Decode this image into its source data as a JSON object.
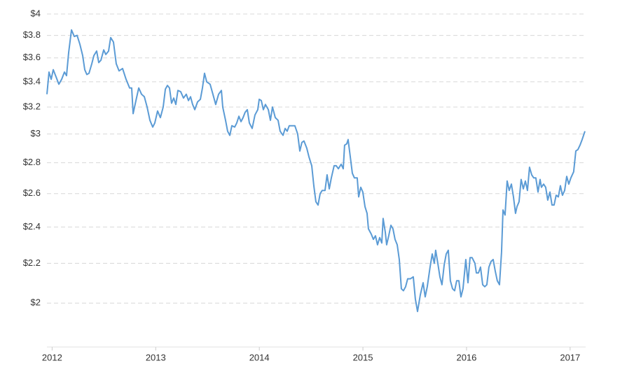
{
  "chart_data": {
    "type": "line",
    "log_scale_y": true,
    "grid": true,
    "xlim": [
      2011.95,
      2017.15
    ],
    "xticks": [
      2012,
      2013,
      2014,
      2015,
      2016,
      2017
    ],
    "ylim": [
      1.8,
      4
    ],
    "yticks": [
      {
        "value": 2,
        "label": "$2"
      },
      {
        "value": 2.2,
        "label": "$2.2"
      },
      {
        "value": 2.4,
        "label": "$2.4"
      },
      {
        "value": 2.6,
        "label": "$2.6"
      },
      {
        "value": 2.8,
        "label": "$2.8"
      },
      {
        "value": 3,
        "label": "$3"
      },
      {
        "value": 3.2,
        "label": "$3.2"
      },
      {
        "value": 3.4,
        "label": "$3.4"
      },
      {
        "value": 3.6,
        "label": "$3.6"
      },
      {
        "value": 3.8,
        "label": "$3.8"
      },
      {
        "value": 4,
        "label": "$4"
      }
    ],
    "color": "#5b9bd5",
    "x": [
      2011.95,
      2011.97,
      2011.991,
      2012.011,
      2012.038,
      2012.065,
      2012.092,
      2012.119,
      2012.139,
      2012.16,
      2012.187,
      2012.214,
      2012.241,
      2012.268,
      2012.295,
      2012.315,
      2012.335,
      2012.356,
      2012.383,
      2012.403,
      2012.43,
      2012.45,
      2012.471,
      2012.498,
      2012.518,
      2012.545,
      2012.565,
      2012.592,
      2012.619,
      2012.646,
      2012.68,
      2012.714,
      2012.748,
      2012.768,
      2012.782,
      2012.809,
      2012.836,
      2012.863,
      2012.89,
      2012.917,
      2012.944,
      2012.971,
      2012.991,
      2013.018,
      2013.045,
      2013.072,
      2013.093,
      2013.113,
      2013.133,
      2013.153,
      2013.174,
      2013.194,
      2013.214,
      2013.241,
      2013.268,
      2013.295,
      2013.316,
      2013.336,
      2013.356,
      2013.377,
      2013.404,
      2013.431,
      2013.451,
      2013.471,
      2013.492,
      2013.525,
      2013.552,
      2013.579,
      2013.607,
      2013.634,
      2013.647,
      2013.674,
      2013.694,
      2013.715,
      2013.735,
      2013.762,
      2013.782,
      2013.803,
      2013.823,
      2013.843,
      2013.863,
      2013.884,
      2013.904,
      2013.931,
      2013.958,
      2013.985,
      2013.999,
      2014.019,
      2014.039,
      2014.059,
      2014.087,
      2014.107,
      2014.127,
      2014.154,
      2014.181,
      2014.201,
      2014.229,
      2014.249,
      2014.269,
      2014.289,
      2014.316,
      2014.343,
      2014.37,
      2014.391,
      2014.411,
      2014.431,
      2014.458,
      2014.479,
      2014.506,
      2014.526,
      2014.546,
      2014.567,
      2014.587,
      2014.607,
      2014.634,
      2014.654,
      2014.675,
      2014.695,
      2014.722,
      2014.742,
      2014.763,
      2014.79,
      2014.81,
      2014.823,
      2014.844,
      2014.857,
      2014.878,
      2014.898,
      2014.918,
      2014.945,
      2014.959,
      2014.979,
      2014.999,
      2015.02,
      2015.04,
      2015.053,
      2015.08,
      2015.101,
      2015.121,
      2015.141,
      2015.162,
      2015.182,
      2015.195,
      2015.216,
      2015.229,
      2015.249,
      2015.27,
      2015.29,
      2015.31,
      2015.331,
      2015.351,
      2015.371,
      2015.391,
      2015.412,
      2015.432,
      2015.459,
      2015.486,
      2015.506,
      2015.527,
      2015.554,
      2015.581,
      2015.601,
      2015.621,
      2015.648,
      2015.669,
      2015.689,
      2015.702,
      2015.723,
      2015.743,
      2015.763,
      2015.784,
      2015.804,
      2015.824,
      2015.844,
      2015.865,
      2015.885,
      2015.905,
      2015.926,
      2015.946,
      2015.966,
      2015.993,
      2016.014,
      2016.034,
      2016.054,
      2016.081,
      2016.095,
      2016.115,
      2016.135,
      2016.156,
      2016.176,
      2016.196,
      2016.216,
      2016.237,
      2016.257,
      2016.277,
      2016.297,
      2016.318,
      2016.338,
      2016.352,
      2016.372,
      2016.392,
      2016.412,
      2016.433,
      2016.453,
      2016.473,
      2016.487,
      2016.507,
      2016.527,
      2016.548,
      2016.568,
      2016.588,
      2016.608,
      2016.629,
      2016.649,
      2016.669,
      2016.69,
      2016.71,
      2016.723,
      2016.744,
      2016.764,
      2016.784,
      2016.805,
      2016.825,
      2016.845,
      2016.865,
      2016.886,
      2016.906,
      2016.926,
      2016.947,
      2016.967,
      2016.987,
      2017.007,
      2017.034,
      2017.055,
      2017.075,
      2017.095,
      2017.116,
      2017.143
    ],
    "values": [
      3.3,
      3.48,
      3.42,
      3.5,
      3.44,
      3.38,
      3.42,
      3.48,
      3.45,
      3.65,
      3.85,
      3.79,
      3.8,
      3.72,
      3.62,
      3.5,
      3.46,
      3.47,
      3.55,
      3.62,
      3.66,
      3.56,
      3.58,
      3.67,
      3.63,
      3.66,
      3.78,
      3.74,
      3.55,
      3.49,
      3.51,
      3.42,
      3.35,
      3.35,
      3.15,
      3.25,
      3.35,
      3.3,
      3.28,
      3.2,
      3.1,
      3.05,
      3.08,
      3.17,
      3.12,
      3.2,
      3.34,
      3.37,
      3.35,
      3.23,
      3.27,
      3.22,
      3.33,
      3.32,
      3.27,
      3.3,
      3.25,
      3.28,
      3.22,
      3.18,
      3.24,
      3.26,
      3.35,
      3.47,
      3.4,
      3.38,
      3.3,
      3.22,
      3.3,
      3.33,
      3.2,
      3.1,
      3.02,
      2.99,
      3.06,
      3.05,
      3.08,
      3.13,
      3.09,
      3.12,
      3.16,
      3.18,
      3.08,
      3.04,
      3.14,
      3.18,
      3.26,
      3.25,
      3.18,
      3.22,
      3.18,
      3.1,
      3.2,
      3.12,
      3.1,
      3.02,
      2.99,
      3.04,
      3.02,
      3.06,
      3.06,
      3.06,
      3.0,
      2.88,
      2.94,
      2.95,
      2.9,
      2.84,
      2.78,
      2.65,
      2.55,
      2.53,
      2.6,
      2.62,
      2.62,
      2.72,
      2.63,
      2.7,
      2.78,
      2.78,
      2.76,
      2.79,
      2.76,
      2.92,
      2.93,
      2.96,
      2.84,
      2.73,
      2.7,
      2.7,
      2.58,
      2.64,
      2.61,
      2.52,
      2.48,
      2.39,
      2.36,
      2.33,
      2.35,
      2.3,
      2.34,
      2.31,
      2.45,
      2.37,
      2.3,
      2.35,
      2.41,
      2.39,
      2.33,
      2.3,
      2.22,
      2.07,
      2.06,
      2.08,
      2.12,
      2.12,
      2.13,
      2.02,
      1.96,
      2.04,
      2.1,
      2.03,
      2.08,
      2.18,
      2.25,
      2.2,
      2.27,
      2.2,
      2.13,
      2.09,
      2.19,
      2.25,
      2.27,
      2.11,
      2.07,
      2.06,
      2.11,
      2.11,
      2.03,
      2.07,
      2.22,
      2.1,
      2.23,
      2.23,
      2.2,
      2.15,
      2.15,
      2.18,
      2.09,
      2.08,
      2.09,
      2.18,
      2.21,
      2.22,
      2.16,
      2.11,
      2.09,
      2.26,
      2.5,
      2.47,
      2.68,
      2.62,
      2.66,
      2.58,
      2.48,
      2.52,
      2.55,
      2.69,
      2.63,
      2.68,
      2.62,
      2.77,
      2.72,
      2.7,
      2.7,
      2.61,
      2.69,
      2.64,
      2.66,
      2.64,
      2.56,
      2.61,
      2.53,
      2.53,
      2.59,
      2.58,
      2.65,
      2.59,
      2.62,
      2.71,
      2.66,
      2.7,
      2.74,
      2.88,
      2.89,
      2.92,
      2.96,
      3.02
    ]
  }
}
